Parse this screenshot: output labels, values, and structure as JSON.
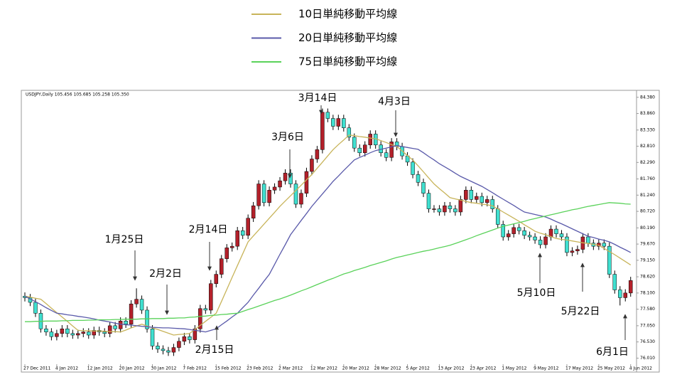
{
  "chart_data": {
    "type": "candlestick",
    "subtitle": "USDJPY,Daily 105.456 105.685 105.258 105.350",
    "categories": [
      "27 Dec 2011",
      null,
      null,
      null,
      null,
      null,
      "4 Jan 2012",
      null,
      null,
      null,
      null,
      null,
      "12 Jan 2012",
      null,
      null,
      null,
      null,
      null,
      "20 Jan 2012",
      null,
      null,
      null,
      null,
      null,
      "30 Jan 2012",
      null,
      null,
      null,
      null,
      null,
      "7 Feb 2012",
      null,
      null,
      null,
      null,
      null,
      "15 Feb 2012",
      null,
      null,
      null,
      null,
      null,
      "23 Feb 2012",
      null,
      null,
      null,
      null,
      null,
      "2 Mar 2012",
      null,
      null,
      null,
      null,
      null,
      "12 Mar 2012",
      null,
      null,
      null,
      null,
      null,
      "20 Mar 2012",
      null,
      null,
      null,
      null,
      null,
      "28 Mar 2012",
      null,
      null,
      null,
      null,
      null,
      "5 Apr 2012",
      null,
      null,
      null,
      null,
      null,
      "13 Apr 2012",
      null,
      null,
      null,
      null,
      null,
      "23 Apr 2012",
      null,
      null,
      null,
      null,
      null,
      "1 May 2012",
      null,
      null,
      null,
      null,
      null,
      "9 May 2012",
      null,
      null,
      null,
      null,
      null,
      "17 May 2012",
      null,
      null,
      null,
      null,
      null,
      "25 May 2012",
      null,
      null,
      null,
      null,
      null,
      "4 Jun 2012"
    ],
    "open": [
      78.0,
      77.95,
      77.8,
      77.45,
      76.95,
      76.85,
      76.7,
      76.8,
      76.95,
      76.8,
      76.75,
      76.8,
      76.85,
      76.75,
      76.9,
      76.85,
      76.8,
      77.05,
      76.95,
      77.2,
      77.1,
      77.75,
      77.9,
      77.55,
      76.95,
      76.4,
      76.3,
      76.25,
      76.2,
      76.35,
      76.55,
      76.7,
      76.6,
      76.95,
      77.6,
      77.55,
      78.4,
      78.7,
      79.2,
      79.55,
      79.6,
      80.1,
      79.95,
      80.5,
      80.9,
      81.6,
      81.0,
      81.4,
      81.5,
      81.7,
      81.95,
      81.6,
      80.95,
      81.3,
      82.0,
      82.4,
      82.7,
      83.9,
      83.7,
      83.45,
      83.7,
      83.4,
      83.1,
      82.75,
      82.6,
      82.85,
      83.2,
      82.85,
      82.6,
      82.45,
      82.95,
      82.8,
      82.5,
      82.3,
      81.9,
      81.65,
      81.3,
      80.8,
      80.8,
      80.7,
      80.9,
      80.8,
      80.7,
      81.1,
      81.4,
      81.1,
      81.2,
      81.0,
      81.1,
      80.8,
      80.3,
      79.9,
      80.0,
      80.2,
      80.1,
      79.95,
      79.9,
      79.8,
      79.65,
      79.9,
      80.15,
      80.0,
      79.9,
      79.4,
      79.45,
      79.5,
      79.9,
      79.7,
      79.6,
      79.7,
      79.6,
      78.7,
      78.2,
      77.95,
      78.1
    ],
    "high": [
      78.12,
      78.07,
      77.92,
      77.57,
      77.07,
      76.97,
      76.92,
      77.07,
      77.07,
      76.92,
      76.92,
      76.97,
      76.97,
      77.02,
      77.02,
      76.97,
      77.17,
      77.17,
      77.32,
      77.32,
      77.87,
      78.25,
      78.02,
      77.67,
      77.07,
      76.52,
      76.42,
      76.37,
      76.47,
      76.67,
      76.82,
      76.82,
      77.07,
      77.72,
      77.72,
      78.52,
      78.82,
      79.32,
      79.67,
      79.72,
      80.22,
      80.22,
      80.62,
      81.02,
      81.72,
      81.72,
      81.52,
      81.62,
      81.82,
      82.07,
      82.07,
      81.72,
      81.42,
      82.12,
      82.52,
      82.82,
      84.02,
      84.02,
      83.82,
      83.82,
      83.82,
      83.52,
      83.22,
      82.87,
      82.97,
      83.32,
      83.32,
      82.97,
      82.72,
      83.07,
      83.07,
      82.92,
      82.62,
      82.42,
      82.02,
      81.77,
      81.42,
      80.92,
      80.92,
      81.02,
      81.02,
      80.92,
      81.22,
      81.52,
      81.52,
      81.32,
      81.32,
      81.22,
      81.22,
      80.92,
      80.42,
      80.12,
      80.32,
      80.32,
      80.22,
      80.07,
      80.02,
      79.92,
      80.02,
      80.27,
      80.27,
      80.12,
      80.02,
      79.57,
      79.62,
      80.02,
      80.02,
      79.82,
      79.82,
      79.82,
      79.72,
      78.82,
      78.32,
      78.22,
      78.62
    ],
    "low": [
      77.83,
      77.68,
      77.33,
      76.83,
      76.73,
      76.58,
      76.58,
      76.68,
      76.68,
      76.63,
      76.63,
      76.68,
      76.63,
      76.63,
      76.73,
      76.68,
      76.68,
      76.83,
      76.83,
      76.98,
      76.98,
      77.63,
      77.43,
      76.83,
      76.28,
      76.18,
      76.13,
      76.08,
      76.08,
      76.23,
      76.43,
      76.48,
      76.48,
      76.83,
      77.43,
      77.43,
      78.28,
      78.58,
      79.08,
      79.43,
      79.48,
      79.83,
      79.83,
      80.38,
      80.78,
      80.88,
      80.88,
      81.28,
      81.38,
      81.58,
      81.48,
      80.83,
      80.83,
      81.18,
      81.88,
      82.28,
      82.58,
      83.58,
      83.33,
      83.33,
      83.28,
      82.98,
      82.63,
      82.48,
      82.48,
      82.73,
      82.73,
      82.48,
      82.33,
      82.33,
      82.68,
      82.38,
      82.18,
      81.78,
      81.53,
      81.18,
      80.68,
      80.68,
      80.58,
      80.58,
      80.68,
      80.58,
      80.58,
      80.98,
      80.98,
      80.98,
      80.88,
      80.88,
      80.68,
      80.18,
      79.78,
      79.78,
      79.88,
      79.98,
      79.83,
      79.78,
      79.68,
      79.53,
      79.53,
      79.78,
      79.88,
      79.78,
      79.28,
      79.28,
      79.33,
      79.38,
      79.58,
      79.48,
      79.48,
      79.48,
      78.58,
      78.08,
      77.7,
      77.83,
      77.98
    ],
    "close": [
      77.95,
      77.8,
      77.45,
      76.95,
      76.85,
      76.7,
      76.8,
      76.95,
      76.8,
      76.75,
      76.8,
      76.85,
      76.75,
      76.9,
      76.85,
      76.8,
      77.05,
      76.95,
      77.2,
      77.1,
      77.75,
      77.9,
      77.55,
      76.95,
      76.4,
      76.3,
      76.25,
      76.2,
      76.35,
      76.55,
      76.7,
      76.6,
      76.95,
      77.6,
      77.55,
      78.4,
      78.7,
      79.2,
      79.55,
      79.6,
      80.1,
      79.95,
      80.5,
      80.9,
      81.6,
      81.0,
      81.4,
      81.5,
      81.7,
      81.95,
      81.6,
      80.95,
      81.3,
      82.0,
      82.4,
      82.7,
      83.9,
      83.7,
      83.45,
      83.7,
      83.4,
      83.1,
      82.75,
      82.6,
      82.85,
      83.2,
      82.85,
      82.6,
      82.45,
      82.95,
      82.8,
      82.5,
      82.3,
      81.9,
      81.65,
      81.3,
      80.8,
      80.8,
      80.7,
      80.9,
      80.8,
      80.7,
      81.1,
      81.4,
      81.1,
      81.2,
      81.0,
      81.1,
      80.8,
      80.3,
      79.9,
      80.0,
      80.2,
      80.1,
      79.95,
      79.9,
      79.8,
      79.65,
      79.9,
      80.15,
      80.0,
      79.9,
      79.4,
      79.45,
      79.5,
      79.9,
      79.7,
      79.6,
      79.7,
      79.6,
      78.7,
      78.2,
      77.95,
      78.1,
      78.5
    ],
    "up_color": "#b3202a",
    "down_color": "#40e0d0",
    "series": [
      {
        "name": "10日単純移動平均線",
        "color": "#c8b45a",
        "values": [
          78.0,
          77.97,
          77.93,
          77.9,
          77.76,
          77.61,
          77.47,
          77.33,
          77.19,
          77.04,
          76.9,
          76.89,
          76.89,
          76.88,
          76.88,
          76.87,
          76.86,
          76.86,
          76.85,
          76.91,
          76.98,
          77.04,
          77.1,
          77.04,
          76.98,
          76.93,
          76.87,
          76.81,
          76.75,
          76.77,
          76.78,
          76.8,
          76.93,
          77.06,
          77.19,
          77.32,
          77.45,
          77.83,
          78.21,
          78.6,
          78.98,
          79.36,
          79.74,
          79.93,
          80.12,
          80.31,
          80.5,
          80.69,
          80.88,
          81.05,
          81.22,
          81.39,
          81.56,
          81.73,
          81.9,
          82.1,
          82.3,
          82.5,
          82.7,
          82.86,
          83.01,
          83.17,
          83.15,
          83.12,
          83.1,
          83.07,
          83.05,
          82.99,
          82.93,
          82.86,
          82.8,
          82.66,
          82.51,
          82.37,
          82.18,
          81.99,
          81.79,
          81.6,
          81.45,
          81.31,
          81.16,
          81.12,
          81.08,
          81.04,
          81.0,
          80.98,
          80.95,
          80.93,
          80.9,
          80.8,
          80.7,
          80.6,
          80.5,
          80.4,
          80.29,
          80.19,
          80.08,
          80.02,
          79.97,
          79.91,
          79.85,
          79.82,
          79.8,
          79.77,
          79.74,
          79.71,
          79.69,
          79.66,
          79.63,
          79.53,
          79.43,
          79.33,
          79.22,
          79.11,
          79.0
        ]
      },
      {
        "name": "20日単純移動平均線",
        "color": "#5a5aaa",
        "values": [
          78.0,
          77.91,
          77.82,
          77.73,
          77.63,
          77.54,
          77.45,
          77.43,
          77.4,
          77.38,
          77.35,
          77.33,
          77.3,
          77.27,
          77.23,
          77.2,
          77.17,
          77.13,
          77.1,
          77.08,
          77.07,
          77.05,
          77.03,
          77.02,
          77.0,
          76.99,
          76.98,
          76.98,
          76.97,
          76.96,
          76.95,
          76.93,
          76.9,
          76.88,
          76.85,
          76.9,
          76.95,
          77.08,
          77.2,
          77.33,
          77.45,
          77.63,
          77.8,
          78.03,
          78.25,
          78.48,
          78.7,
          79.02,
          79.34,
          79.65,
          79.97,
          80.2,
          80.43,
          80.65,
          80.88,
          81.08,
          81.28,
          81.48,
          81.68,
          81.85,
          82.03,
          82.2,
          82.37,
          82.45,
          82.52,
          82.6,
          82.67,
          82.71,
          82.75,
          82.79,
          82.83,
          82.8,
          82.77,
          82.74,
          82.71,
          82.6,
          82.48,
          82.37,
          82.25,
          82.15,
          82.05,
          81.94,
          81.84,
          81.76,
          81.68,
          81.6,
          81.52,
          81.42,
          81.32,
          81.21,
          81.11,
          81.01,
          80.91,
          80.8,
          80.7,
          80.66,
          80.62,
          80.58,
          80.54,
          80.47,
          80.39,
          80.32,
          80.24,
          80.16,
          80.08,
          80.0,
          79.92,
          79.88,
          79.83,
          79.79,
          79.74,
          79.66,
          79.57,
          79.49,
          79.4
        ]
      },
      {
        "name": "75日単純移動平均線",
        "color": "#5ad25a",
        "values": [
          77.18,
          77.18,
          77.19,
          77.19,
          77.2,
          77.2,
          77.2,
          77.21,
          77.21,
          77.22,
          77.22,
          77.22,
          77.23,
          77.23,
          77.24,
          77.24,
          77.24,
          77.25,
          77.25,
          77.26,
          77.26,
          77.26,
          77.27,
          77.27,
          77.28,
          77.28,
          77.28,
          77.29,
          77.29,
          77.3,
          77.3,
          77.32,
          77.33,
          77.35,
          77.36,
          77.38,
          77.39,
          77.41,
          77.42,
          77.44,
          77.45,
          77.51,
          77.57,
          77.62,
          77.68,
          77.74,
          77.8,
          77.86,
          77.91,
          77.97,
          78.03,
          78.1,
          78.17,
          78.23,
          78.3,
          78.37,
          78.44,
          78.51,
          78.57,
          78.64,
          78.71,
          78.76,
          78.82,
          78.87,
          78.92,
          78.98,
          79.03,
          79.08,
          79.13,
          79.19,
          79.24,
          79.28,
          79.32,
          79.36,
          79.4,
          79.44,
          79.47,
          79.51,
          79.55,
          79.59,
          79.63,
          79.69,
          79.75,
          79.81,
          79.87,
          79.94,
          80.0,
          80.06,
          80.12,
          80.18,
          80.24,
          80.28,
          80.32,
          80.36,
          80.4,
          80.45,
          80.49,
          80.53,
          80.57,
          80.61,
          80.65,
          80.69,
          80.73,
          80.77,
          80.8,
          80.84,
          80.88,
          80.91,
          80.94,
          80.97,
          81.0,
          80.99,
          80.98,
          80.96,
          80.95
        ]
      }
    ],
    "ylim": [
      75.7,
      84.58
    ],
    "yticks": [
      {
        "value": 84.38,
        "label": "84.380"
      },
      {
        "value": 83.86,
        "label": "83.860"
      },
      {
        "value": 83.33,
        "label": "83.330"
      },
      {
        "value": 82.81,
        "label": "82.810"
      },
      {
        "value": 82.29,
        "label": "82.290"
      },
      {
        "value": 81.76,
        "label": "81.760"
      },
      {
        "value": 81.24,
        "label": "81.240"
      },
      {
        "value": 80.72,
        "label": "80.720"
      },
      {
        "value": 80.19,
        "label": "80.190"
      },
      {
        "value": 79.67,
        "label": "79.670"
      },
      {
        "value": 79.15,
        "label": "79.150"
      },
      {
        "value": 78.62,
        "label": "78.620"
      },
      {
        "value": 78.1,
        "label": "78.100"
      },
      {
        "value": 77.58,
        "label": "77.580"
      },
      {
        "value": 77.05,
        "label": "77.050"
      },
      {
        "value": 76.53,
        "label": "76.530"
      },
      {
        "value": 76.01,
        "label": "76.010"
      }
    ],
    "annotations": [
      "1月25日",
      "2月2日",
      "2月14日",
      "2月15日",
      "3月6日",
      "3月14日",
      "4月3日",
      "5月10日",
      "5月22日",
      "6月1日"
    ]
  }
}
